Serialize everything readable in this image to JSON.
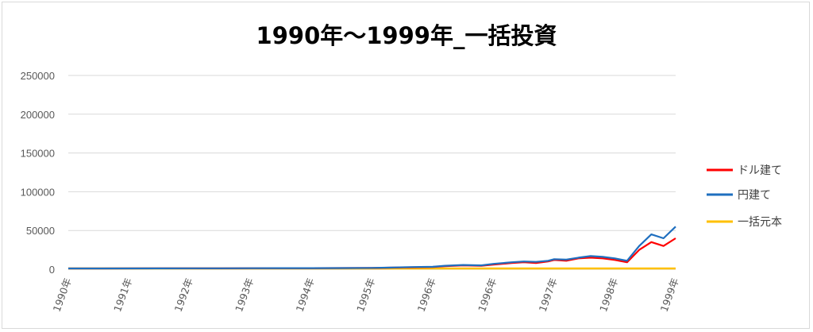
{
  "chart_data": {
    "type": "line",
    "title": "1990年～1999年_一括投資",
    "xlabel": "",
    "ylabel": "",
    "ylim": [
      0,
      250000
    ],
    "yticks": [
      "0",
      "50000",
      "100000",
      "150000",
      "200000",
      "250000"
    ],
    "x_tick_labels": [
      "1990年",
      "1991年",
      "1992年",
      "1993年",
      "1994年",
      "1995年",
      "1996年",
      "1996年",
      "1997年",
      "1998年",
      "1999年"
    ],
    "grid": true,
    "legend_position": "right",
    "series": [
      {
        "name": "ドル建て",
        "color": "#ff0000",
        "x": [
          0,
          1.5,
          2,
          2.5,
          3,
          3.5,
          4,
          4.5,
          5,
          5.3,
          5.6,
          6,
          6.2,
          6.5,
          6.8,
          7,
          7.3,
          7.5,
          7.7,
          7.9,
          8,
          8.2,
          8.4,
          8.6,
          8.8,
          9,
          9.2,
          9.4,
          9.6,
          9.8,
          10
        ],
        "values": [
          1000,
          1100,
          1200,
          1150,
          1300,
          1350,
          1400,
          1500,
          1600,
          2000,
          2500,
          3000,
          4000,
          5000,
          4500,
          6000,
          8000,
          9000,
          8000,
          10000,
          12000,
          11000,
          14000,
          15000,
          14000,
          12000,
          9000,
          25000,
          35000,
          30000,
          40000
        ]
      },
      {
        "name": "円建て",
        "color": "#1f6fbf",
        "x": [
          0,
          1.5,
          2,
          2.5,
          3,
          3.5,
          4,
          4.5,
          5,
          5.3,
          5.6,
          6,
          6.2,
          6.5,
          6.8,
          7,
          7.3,
          7.5,
          7.7,
          7.9,
          8,
          8.2,
          8.4,
          8.6,
          8.8,
          9,
          9.2,
          9.4,
          9.6,
          9.8,
          10
        ],
        "values": [
          1000,
          1150,
          1250,
          1200,
          1350,
          1400,
          1450,
          1550,
          1700,
          2200,
          2800,
          3200,
          4500,
          5500,
          5000,
          7000,
          9000,
          10000,
          9500,
          11000,
          13000,
          12500,
          15000,
          17000,
          16000,
          14000,
          11000,
          30000,
          45000,
          40000,
          55000
        ]
      },
      {
        "name": "一括元本",
        "color": "#ffc000",
        "x": [
          0,
          10
        ],
        "values": [
          1000,
          1000
        ]
      }
    ]
  }
}
